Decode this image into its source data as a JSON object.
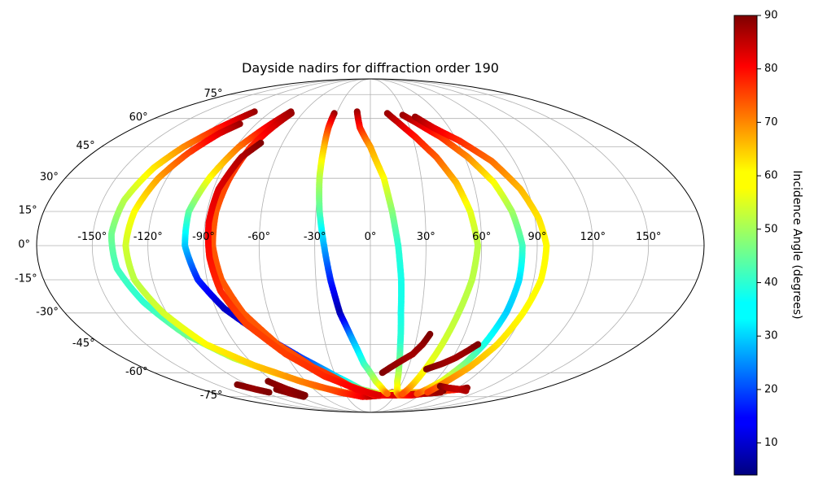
{
  "chart_data": {
    "type": "scatter",
    "projection": "mollweide",
    "title": "Dayside nadirs for diffraction order 190",
    "grid": true,
    "longitude_ticks": [
      -150,
      -120,
      -90,
      -60,
      -30,
      0,
      30,
      60,
      90,
      120,
      150
    ],
    "latitude_ticks": [
      -75,
      -60,
      -45,
      -30,
      -15,
      0,
      15,
      30,
      45,
      60,
      75
    ],
    "longitude_tick_labels": [
      "-150°",
      "-120°",
      "-90°",
      "-60°",
      "-30°",
      "0°",
      "30°",
      "60°",
      "90°",
      "120°",
      "150°"
    ],
    "latitude_tick_labels": [
      "-75°",
      "-60°",
      "-45°",
      "-30°",
      "-15°",
      "0°",
      "15°",
      "30°",
      "45°",
      "60°",
      "75°"
    ],
    "colorbar": {
      "label": "Incidence Angle (degrees)",
      "colormap": "jet",
      "range": [
        4,
        90
      ],
      "ticks": [
        10,
        20,
        30,
        40,
        50,
        60,
        70,
        80,
        90
      ],
      "tick_labels": [
        "10",
        "20",
        "30",
        "40",
        "50",
        "60",
        "70",
        "80",
        "90"
      ]
    },
    "series": [
      {
        "points": [
          [
            -105,
            64,
            88
          ],
          [
            -115,
            55,
            78
          ],
          [
            -125,
            45,
            68
          ],
          [
            -132,
            35,
            60
          ],
          [
            -138,
            20,
            52
          ],
          [
            -140,
            5,
            46
          ],
          [
            -138,
            -10,
            42
          ],
          [
            -130,
            -25,
            40
          ],
          [
            -118,
            -40,
            45
          ],
          [
            -100,
            -52,
            52
          ],
          [
            -80,
            -60,
            58
          ],
          [
            -55,
            -68,
            64
          ],
          [
            -30,
            -72,
            70
          ],
          [
            -5,
            -75,
            76
          ],
          [
            15,
            -74,
            84
          ],
          [
            25,
            -72,
            90
          ]
        ]
      },
      {
        "points": [
          [
            -103,
            57,
            88
          ],
          [
            -110,
            52,
            82
          ],
          [
            -118,
            42,
            74
          ],
          [
            -125,
            30,
            66
          ],
          [
            -130,
            15,
            58
          ],
          [
            -132,
            0,
            54
          ],
          [
            -130,
            -15,
            52
          ],
          [
            -122,
            -30,
            54
          ],
          [
            -110,
            -45,
            58
          ],
          [
            -90,
            -56,
            62
          ],
          [
            -65,
            -65,
            68
          ],
          [
            -35,
            -72,
            74
          ],
          [
            -10,
            -75,
            80
          ],
          [
            10,
            -74,
            88
          ]
        ]
      },
      {
        "points": [
          [
            -72,
            64,
            88
          ],
          [
            -80,
            55,
            80
          ],
          [
            -88,
            45,
            70
          ],
          [
            -95,
            30,
            58
          ],
          [
            -100,
            15,
            45
          ],
          [
            -100,
            0,
            32
          ],
          [
            -95,
            -15,
            18
          ],
          [
            -85,
            -28,
            10
          ],
          [
            -70,
            -40,
            12
          ],
          [
            -50,
            -52,
            20
          ],
          [
            -30,
            -62,
            32
          ],
          [
            -10,
            -70,
            45
          ],
          [
            10,
            -73,
            55
          ],
          [
            40,
            -72,
            60
          ],
          [
            60,
            -72,
            66
          ],
          [
            80,
            -71,
            72
          ],
          [
            95,
            -70,
            80
          ],
          [
            100,
            -69,
            88
          ]
        ]
      },
      {
        "points": [
          [
            -70,
            63,
            88
          ],
          [
            -75,
            55,
            82
          ],
          [
            -80,
            45,
            76
          ],
          [
            -83,
            30,
            74
          ],
          [
            -85,
            15,
            72
          ],
          [
            -85,
            0,
            72
          ],
          [
            -82,
            -15,
            72
          ],
          [
            -75,
            -30,
            72
          ],
          [
            -62,
            -45,
            72
          ],
          [
            -45,
            -57,
            74
          ],
          [
            -20,
            -68,
            76
          ],
          [
            5,
            -74,
            78
          ],
          [
            30,
            -74,
            82
          ],
          [
            60,
            -73,
            86
          ],
          [
            80,
            -71,
            90
          ]
        ]
      },
      {
        "points": [
          [
            -75,
            47,
            90
          ],
          [
            -82,
            40,
            86
          ],
          [
            -87,
            25,
            82
          ],
          [
            -88,
            10,
            80
          ],
          [
            -87,
            -5,
            78
          ],
          [
            -84,
            -20,
            76
          ],
          [
            -76,
            -35,
            74
          ],
          [
            -60,
            -50,
            74
          ],
          [
            -40,
            -62,
            76
          ],
          [
            -15,
            -70,
            80
          ],
          [
            10,
            -74,
            82
          ]
        ]
      },
      {
        "points": [
          [
            -32,
            63,
            88
          ],
          [
            -32,
            55,
            76
          ],
          [
            -31,
            45,
            64
          ],
          [
            -30,
            30,
            52
          ],
          [
            -28,
            15,
            44
          ],
          [
            -25,
            0,
            30
          ],
          [
            -22,
            -15,
            18
          ],
          [
            -18,
            -30,
            8
          ],
          [
            -12,
            -42,
            28
          ],
          [
            -5,
            -55,
            40
          ],
          [
            5,
            -65,
            52
          ],
          [
            15,
            -71,
            62
          ],
          [
            20,
            -73,
            70
          ]
        ]
      },
      {
        "points": [
          [
            -12,
            64,
            88
          ],
          [
            -8,
            55,
            78
          ],
          [
            0,
            45,
            66
          ],
          [
            8,
            30,
            58
          ],
          [
            12,
            15,
            48
          ],
          [
            15,
            0,
            40
          ],
          [
            17,
            -15,
            38
          ],
          [
            18,
            -30,
            38
          ],
          [
            20,
            -45,
            40
          ],
          [
            22,
            -55,
            46
          ],
          [
            25,
            -65,
            54
          ],
          [
            30,
            -72,
            60
          ],
          [
            35,
            -74,
            68
          ],
          [
            40,
            -74,
            74
          ],
          [
            50,
            -74,
            80
          ],
          [
            60,
            -73,
            84
          ],
          [
            80,
            -72,
            88
          ]
        ]
      },
      {
        "points": [
          [
            15,
            63,
            88
          ],
          [
            22,
            58,
            84
          ],
          [
            32,
            50,
            78
          ],
          [
            42,
            40,
            72
          ],
          [
            50,
            28,
            64
          ],
          [
            55,
            15,
            56
          ],
          [
            58,
            0,
            52
          ],
          [
            56,
            -15,
            52
          ],
          [
            52,
            -30,
            52
          ],
          [
            48,
            -45,
            54
          ],
          [
            45,
            -55,
            56
          ],
          [
            42,
            -65,
            60
          ],
          [
            40,
            -70,
            66
          ],
          [
            38,
            -73,
            72
          ]
        ]
      },
      {
        "points": [
          [
            28,
            62,
            88
          ],
          [
            36,
            58,
            84
          ],
          [
            50,
            50,
            76
          ],
          [
            62,
            40,
            68
          ],
          [
            72,
            28,
            58
          ],
          [
            78,
            15,
            50
          ],
          [
            82,
            0,
            42
          ],
          [
            82,
            -15,
            34
          ],
          [
            80,
            -30,
            32
          ],
          [
            76,
            -45,
            38
          ],
          [
            72,
            -55,
            46
          ],
          [
            66,
            -65,
            56
          ],
          [
            60,
            -70,
            64
          ],
          [
            55,
            -73,
            72
          ]
        ]
      },
      {
        "points": [
          [
            38,
            61,
            88
          ],
          [
            48,
            55,
            82
          ],
          [
            62,
            48,
            76
          ],
          [
            76,
            38,
            70
          ],
          [
            86,
            25,
            64
          ],
          [
            92,
            12,
            60
          ],
          [
            95,
            0,
            58
          ],
          [
            94,
            -15,
            58
          ],
          [
            90,
            -30,
            58
          ],
          [
            85,
            -45,
            60
          ],
          [
            78,
            -57,
            64
          ],
          [
            70,
            -66,
            68
          ],
          [
            65,
            -72,
            74
          ]
        ]
      },
      {
        "points": [
          [
            10,
            -60,
            90
          ],
          [
            20,
            -55,
            88
          ],
          [
            30,
            -50,
            87
          ],
          [
            35,
            -45,
            88
          ],
          [
            38,
            -40,
            90
          ]
        ]
      },
      {
        "points": [
          [
            45,
            -58,
            90
          ],
          [
            55,
            -55,
            88
          ],
          [
            62,
            -52,
            87
          ],
          [
            68,
            -48,
            88
          ],
          [
            72,
            -45,
            90
          ]
        ]
      },
      {
        "points": [
          [
            70,
            -68,
            90
          ],
          [
            80,
            -69,
            86
          ],
          [
            95,
            -70,
            84
          ],
          [
            105,
            -71,
            86
          ]
        ]
      },
      {
        "points": [
          [
            -130,
            -67,
            90
          ],
          [
            -122,
            -70,
            88
          ],
          [
            -115,
            -72,
            90
          ]
        ]
      },
      {
        "points": [
          [
            -100,
            -70,
            90
          ],
          [
            -92,
            -73,
            88
          ],
          [
            -85,
            -75,
            90
          ]
        ]
      },
      {
        "points": [
          [
            -95,
            -65,
            90
          ],
          [
            -88,
            -70,
            88
          ],
          [
            -80,
            -74,
            90
          ]
        ]
      }
    ]
  }
}
